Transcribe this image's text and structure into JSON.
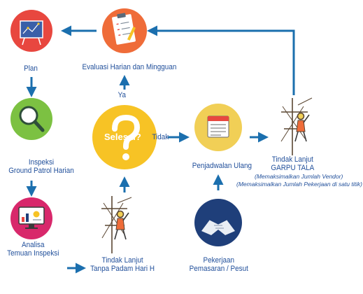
{
  "nodes": {
    "plan": {
      "label": "Plan",
      "icon": "blueprint-board-icon"
    },
    "inspeksi": {
      "label_line1": "Inspeksi",
      "label_line2": "Ground Patrol Harian",
      "icon": "magnifier-icon"
    },
    "analisa": {
      "label_line1": "Analisa",
      "label_line2": "Temuan Inspeksi",
      "icon": "monitor-analysis-icon"
    },
    "evaluasi": {
      "label": "Evaluasi Harian dan Mingguan",
      "icon": "clipboard-checklist-icon"
    },
    "selesai": {
      "label": "Selesai?",
      "icon": "question-mark-icon"
    },
    "tindak_padam": {
      "label_line1": "Tindak Lanjut",
      "label_line2": "Tanpa Padam Hari H",
      "icon": "lineman-tower-icon"
    },
    "penjadwalan": {
      "label": "Penjadwalan Ulang",
      "icon": "calendar-note-icon"
    },
    "pekerjaan": {
      "label_line1": "Pekerjaan",
      "label_line2": "Pemasaran / Pesut",
      "icon": "handshake-icon"
    },
    "garpu": {
      "label_line1": "Tindak Lanjut",
      "label_line2": "GARPU TALA",
      "note1": "(Memaksimalkan  Jumlah Vendor)",
      "note2": "(Memaksimalkan  Jumlah Pekerjaan di satu titik)",
      "icon": "lineman-tower-icon"
    }
  },
  "edges": {
    "ya": "Ya",
    "tidak": "Tidak"
  },
  "colors": {
    "arrow": "#1b6fae",
    "text": "#1f4e9a",
    "red": "#e8473f",
    "green": "#7cc142",
    "magenta": "#d8286b",
    "orange": "#ef6c39",
    "yellow": "#f7c325",
    "gold": "#f1cf56",
    "navy": "#1f3f7a"
  }
}
